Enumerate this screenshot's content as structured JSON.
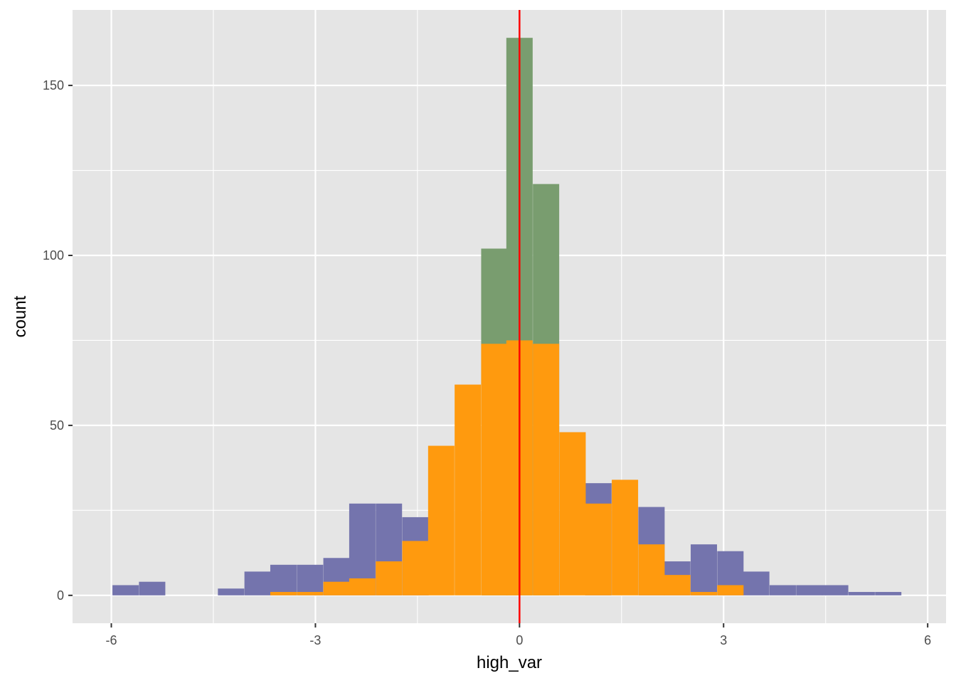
{
  "chart_data": {
    "type": "bar",
    "title": "",
    "xlabel": "high_var",
    "ylabel": "count",
    "xlim": [
      -6.57,
      6.27
    ],
    "ylim": [
      -8.2,
      172.2
    ],
    "x_ticks": [
      -6,
      -3,
      0,
      3,
      6
    ],
    "x_tick_labels": [
      "-6",
      "-3",
      "0",
      "3",
      "6"
    ],
    "y_ticks": [
      0,
      50,
      100,
      150
    ],
    "y_tick_labels": [
      "0",
      "50",
      "100",
      "150"
    ],
    "grid": true,
    "legend": "none",
    "bin_width": 0.387,
    "vline_x": 0,
    "colors": {
      "background": "#e5e5e5",
      "grid": "#ffffff",
      "purple": "#7474ad",
      "green": "#799d6f",
      "orange": "#ff9a0e",
      "vline": "#ff0000"
    },
    "series": [
      {
        "color_key": "purple",
        "x": [
          -5.79,
          -5.4,
          -5.01,
          -4.63,
          -4.24,
          -3.85,
          -3.47,
          -3.08,
          -2.69,
          -2.31,
          -1.92,
          -1.53,
          -1.15,
          -0.76,
          -0.37,
          0.0,
          0.39,
          0.78,
          1.16,
          1.55,
          1.94,
          2.32,
          2.71,
          3.1,
          3.48,
          3.87,
          4.26,
          4.64,
          5.03,
          5.42
        ],
        "values": [
          3,
          4,
          0,
          0,
          2,
          7,
          9,
          9,
          11,
          27,
          27,
          23,
          0,
          0,
          0,
          0,
          0,
          0,
          33,
          0,
          26,
          10,
          15,
          13,
          7,
          3,
          3,
          3,
          1,
          1
        ]
      },
      {
        "color_key": "green",
        "x": [
          -0.37,
          0.0,
          0.39
        ],
        "values": [
          102,
          164,
          121
        ]
      },
      {
        "color_key": "orange",
        "x": [
          -3.47,
          -3.08,
          -2.69,
          -2.31,
          -1.92,
          -1.53,
          -1.15,
          -0.76,
          -0.37,
          0.0,
          0.39,
          0.78,
          1.16,
          1.55,
          1.94,
          2.32,
          2.71,
          3.1
        ],
        "values": [
          1,
          1,
          4,
          5,
          10,
          16,
          44,
          62,
          74,
          75,
          74,
          48,
          27,
          34,
          15,
          6,
          1,
          3
        ]
      }
    ]
  }
}
